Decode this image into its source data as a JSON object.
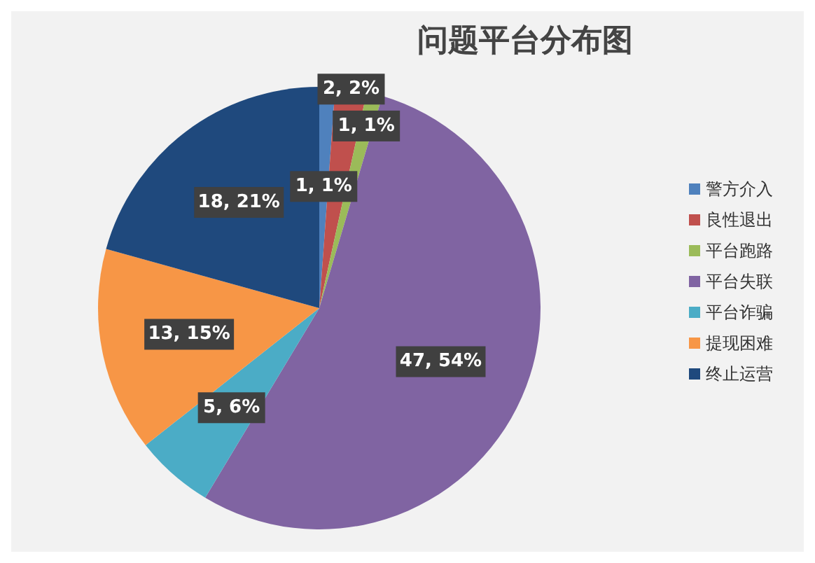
{
  "chart_data": {
    "type": "pie",
    "title": "问题平台分布图",
    "categories": [
      "警方介入",
      "良性退出",
      "平台跑路",
      "平台失联",
      "平台诈骗",
      "提现困难",
      "终止运营"
    ],
    "values": [
      1,
      2,
      1,
      47,
      5,
      13,
      18
    ],
    "colors": [
      "#4f81bd",
      "#c0504d",
      "#9bbb59",
      "#8064a2",
      "#4bacc6",
      "#f79646",
      "#1f497d"
    ],
    "value_labels": [
      "1, 1%",
      "2, 2%",
      "1, 1%",
      "47, 54%",
      "5, 6%",
      "13, 15%",
      "18, 21%"
    ],
    "legend": "right"
  }
}
